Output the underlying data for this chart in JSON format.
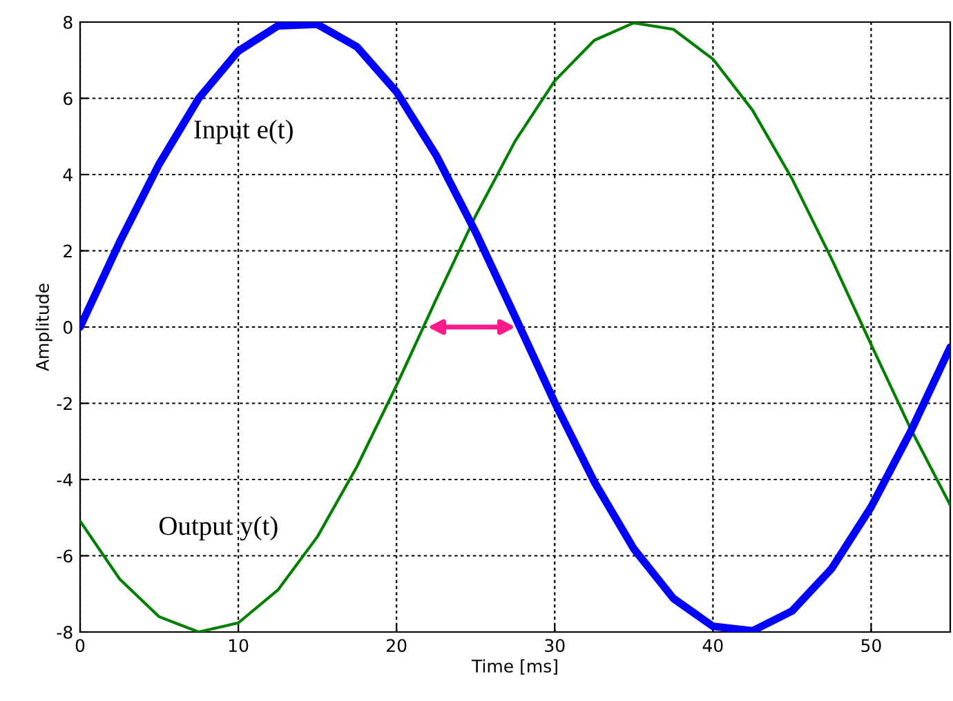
{
  "chart_data": {
    "type": "line",
    "xlabel": "Time [ms]",
    "ylabel": "Amplitude",
    "xlim": [
      0,
      55
    ],
    "ylim": [
      -8,
      8
    ],
    "xticks": [
      0,
      10,
      20,
      30,
      40,
      50
    ],
    "yticks": [
      -8,
      -6,
      -4,
      -2,
      0,
      2,
      4,
      6,
      8
    ],
    "grid": true,
    "series": [
      {
        "color": "#0000ff",
        "x": [
          0,
          2.5,
          5,
          7.5,
          10,
          12.5,
          15,
          17.5,
          20,
          22.5,
          25,
          27.5,
          30,
          32.5,
          35,
          37.5,
          40,
          42.5,
          45,
          47.5,
          50,
          52.5,
          55
        ],
        "values": [
          0,
          2.23,
          4.28,
          6.0,
          7.24,
          7.9,
          7.94,
          7.35,
          6.17,
          4.51,
          2.49,
          0.27,
          -1.98,
          -4.06,
          -5.82,
          -7.12,
          -7.85,
          -7.97,
          -7.45,
          -6.34,
          -4.72,
          -2.74,
          -0.53
        ]
      },
      {
        "color": "#008000",
        "x": [
          0,
          2.5,
          5,
          7.5,
          10,
          12.5,
          15,
          17.5,
          20,
          22.5,
          25,
          27.5,
          30,
          32.5,
          35,
          37.5,
          40,
          42.5,
          45,
          47.5,
          50,
          52.5,
          55
        ],
        "values": [
          -5.09,
          -6.61,
          -7.6,
          -8.0,
          -7.76,
          -6.9,
          -5.5,
          -3.66,
          -1.53,
          0.72,
          2.92,
          4.88,
          6.46,
          7.52,
          7.98,
          7.81,
          7.03,
          5.69,
          3.89,
          1.79,
          -0.46,
          -2.67,
          -4.67
        ]
      }
    ],
    "annotations": [
      "Input e(t)",
      "Output y(t)"
    ]
  }
}
